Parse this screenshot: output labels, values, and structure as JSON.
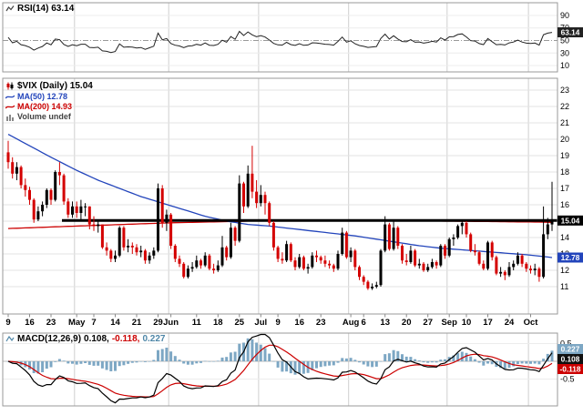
{
  "rsi_panel": {
    "label": "RSI(14) 63.14",
    "badge": "63.14"
  },
  "price_panel": {
    "symbol_label": "$VIX (Daily) 15.04",
    "ma50_label": "MA(50) 12.78",
    "ma200_label": "MA(200) 14.93",
    "volume_label": "Volume undef",
    "price_badge": "15.04",
    "ma50_badge": "12.78"
  },
  "macd_panel": {
    "name": "MACD(12,26,9)",
    "value_macd": "0.108,",
    "value_signal": "-0.118,",
    "value_hist": "0.227",
    "badge_macd": "0.108",
    "badge_signal": "-0.118",
    "badge_hist": "0.227"
  },
  "colors": {
    "candle_up": "#000000",
    "candle_down": "#d40000",
    "ma50": "#2244bb",
    "ma200": "#cc0000",
    "trendline": "#000000",
    "rsi_line": "#222222",
    "macd_line": "#000000",
    "macd_signal": "#cc0000",
    "macd_hist": "#7da7c4",
    "macd_hist_text": "#4f87a8",
    "badge_price_bg": "#000000",
    "badge_ma50_bg": "#2244bb",
    "badge_rsi_bg": "#222222",
    "badge_macd_bg": "#111111",
    "grid_h": "#e3e3e3",
    "grid_v": "#cfcfcf",
    "panel_border": "#999999"
  },
  "chart_data": [
    {
      "type": "line",
      "title": "RSI(14)",
      "last_value": 63.14,
      "ylim": [
        0,
        100
      ],
      "yticks": [
        90,
        70,
        50,
        30,
        10
      ],
      "midline": 50,
      "overbought": 70,
      "oversold": 30,
      "period": 14
    },
    {
      "type": "candlestick",
      "title": "$VIX (Daily)",
      "last_close": 15.04,
      "ylim": [
        9.3,
        23.7
      ],
      "yticks": [
        23,
        22,
        21,
        20,
        19,
        18,
        17,
        16,
        15,
        14,
        13,
        12,
        11
      ],
      "trendline_level": 15.04,
      "xticks": [
        [
          "9",
          0
        ],
        [
          "16",
          5
        ],
        [
          "23",
          10
        ],
        [
          "May",
          16
        ],
        [
          "7",
          20
        ],
        [
          "14",
          25
        ],
        [
          "21",
          30
        ],
        [
          "29",
          35
        ],
        [
          "Jun",
          38
        ],
        [
          "11",
          44
        ],
        [
          "18",
          49
        ],
        [
          "25",
          54
        ],
        [
          "Jul",
          59
        ],
        [
          "9",
          63
        ],
        [
          "16",
          68
        ],
        [
          "23",
          73
        ],
        [
          "Aug",
          80
        ],
        [
          "6",
          83
        ],
        [
          "13",
          88
        ],
        [
          "20",
          93
        ],
        [
          "27",
          98
        ],
        [
          "Sep",
          103
        ],
        [
          "10",
          107
        ],
        [
          "17",
          112
        ],
        [
          "24",
          117
        ],
        [
          "Oct",
          122
        ]
      ],
      "ohlc": [
        [
          19.2,
          19.9,
          18.2,
          18.6
        ],
        [
          18.6,
          18.9,
          17.6,
          17.9
        ],
        [
          17.9,
          18.6,
          17.5,
          18.3
        ],
        [
          18.3,
          18.4,
          17.0,
          17.2
        ],
        [
          17.2,
          17.6,
          16.5,
          16.9
        ],
        [
          16.9,
          17.1,
          16.0,
          16.3
        ],
        [
          16.3,
          16.4,
          14.9,
          15.1
        ],
        [
          15.1,
          15.9,
          15.0,
          15.6
        ],
        [
          15.6,
          16.2,
          15.3,
          16.0
        ],
        [
          16.0,
          17.0,
          15.8,
          16.9
        ],
        [
          16.9,
          17.0,
          16.0,
          16.3
        ],
        [
          16.3,
          18.1,
          16.2,
          18.0
        ],
        [
          18.0,
          18.6,
          17.2,
          17.8
        ],
        [
          17.8,
          17.9,
          16.0,
          16.2
        ],
        [
          16.2,
          16.4,
          15.2,
          15.4
        ],
        [
          15.4,
          16.2,
          15.2,
          15.9
        ],
        [
          15.9,
          16.2,
          15.2,
          15.5
        ],
        [
          15.5,
          16.3,
          15.1,
          15.9
        ],
        [
          15.9,
          16.1,
          15.3,
          15.9
        ],
        [
          15.9,
          15.9,
          14.5,
          14.8
        ],
        [
          14.8,
          15.3,
          14.4,
          14.7
        ],
        [
          14.7,
          15.0,
          14.3,
          14.8
        ],
        [
          14.8,
          14.8,
          13.3,
          13.4
        ],
        [
          13.4,
          13.7,
          12.9,
          13.2
        ],
        [
          13.2,
          13.3,
          12.5,
          12.7
        ],
        [
          12.7,
          13.2,
          12.5,
          12.9
        ],
        [
          12.9,
          14.7,
          12.8,
          14.6
        ],
        [
          14.6,
          14.7,
          13.2,
          13.4
        ],
        [
          13.4,
          13.9,
          13.1,
          13.5
        ],
        [
          13.5,
          13.7,
          13.0,
          13.4
        ],
        [
          13.4,
          13.6,
          12.9,
          13.1
        ],
        [
          13.1,
          13.5,
          12.8,
          13.2
        ],
        [
          13.2,
          13.3,
          12.4,
          12.6
        ],
        [
          12.6,
          13.1,
          12.4,
          12.9
        ],
        [
          12.9,
          13.4,
          12.7,
          13.2
        ],
        [
          13.2,
          17.3,
          13.1,
          17.0
        ],
        [
          17.0,
          17.2,
          14.6,
          14.9
        ],
        [
          14.9,
          15.7,
          14.4,
          15.4
        ],
        [
          15.4,
          15.5,
          13.3,
          13.5
        ],
        [
          13.5,
          13.6,
          12.5,
          12.7
        ],
        [
          12.7,
          12.9,
          12.2,
          12.4
        ],
        [
          12.4,
          12.5,
          11.5,
          11.6
        ],
        [
          11.6,
          12.3,
          11.5,
          12.1
        ],
        [
          12.1,
          12.5,
          11.9,
          12.2
        ],
        [
          12.2,
          12.9,
          12.1,
          12.6
        ],
        [
          12.6,
          12.7,
          12.1,
          12.3
        ],
        [
          12.3,
          13.1,
          12.2,
          12.9
        ],
        [
          12.9,
          13.0,
          12.0,
          12.1
        ],
        [
          12.1,
          12.4,
          11.8,
          12.0
        ],
        [
          12.0,
          12.6,
          11.9,
          12.3
        ],
        [
          12.3,
          14.1,
          12.2,
          13.4
        ],
        [
          13.4,
          13.5,
          12.6,
          12.8
        ],
        [
          12.8,
          14.9,
          12.7,
          14.6
        ],
        [
          14.6,
          14.7,
          13.5,
          13.8
        ],
        [
          13.8,
          17.8,
          13.7,
          17.3
        ],
        [
          17.3,
          17.4,
          15.5,
          15.9
        ],
        [
          15.9,
          18.4,
          15.8,
          17.9
        ],
        [
          17.9,
          19.6,
          16.4,
          16.8
        ],
        [
          16.8,
          17.5,
          15.8,
          16.1
        ],
        [
          16.1,
          17.2,
          15.9,
          16.6
        ],
        [
          16.6,
          16.8,
          15.4,
          16.1
        ],
        [
          16.1,
          16.2,
          14.7,
          14.9
        ],
        [
          14.9,
          15.0,
          13.2,
          13.4
        ],
        [
          13.4,
          13.5,
          12.5,
          12.7
        ],
        [
          12.7,
          13.1,
          12.4,
          12.6
        ],
        [
          12.6,
          13.8,
          12.5,
          13.6
        ],
        [
          13.6,
          13.7,
          12.5,
          12.6
        ],
        [
          12.6,
          12.8,
          12.0,
          12.2
        ],
        [
          12.2,
          13.0,
          12.1,
          12.8
        ],
        [
          12.8,
          12.9,
          12.0,
          12.1
        ],
        [
          12.1,
          12.4,
          11.8,
          12.2
        ],
        [
          12.2,
          13.1,
          12.1,
          12.9
        ],
        [
          12.9,
          13.2,
          12.5,
          12.8
        ],
        [
          12.8,
          12.9,
          12.4,
          12.6
        ],
        [
          12.6,
          12.9,
          12.2,
          12.4
        ],
        [
          12.4,
          12.6,
          12.1,
          12.3
        ],
        [
          12.3,
          12.4,
          11.9,
          12.1
        ],
        [
          12.1,
          13.2,
          12.0,
          13.0
        ],
        [
          13.0,
          14.6,
          12.9,
          14.3
        ],
        [
          14.3,
          14.4,
          12.7,
          12.8
        ],
        [
          12.8,
          13.4,
          12.5,
          13.2
        ],
        [
          13.2,
          13.3,
          12.0,
          12.2
        ],
        [
          12.2,
          12.3,
          11.4,
          11.6
        ],
        [
          11.6,
          11.7,
          11.1,
          11.3
        ],
        [
          11.3,
          11.4,
          10.8,
          10.9
        ],
        [
          10.9,
          11.2,
          10.8,
          11.0
        ],
        [
          11.0,
          11.3,
          10.9,
          11.1
        ],
        [
          11.1,
          13.3,
          11.0,
          13.2
        ],
        [
          13.2,
          15.3,
          13.1,
          14.8
        ],
        [
          14.8,
          14.9,
          13.2,
          13.3
        ],
        [
          13.3,
          15.0,
          13.2,
          14.6
        ],
        [
          14.6,
          14.7,
          13.3,
          13.5
        ],
        [
          13.5,
          13.6,
          12.4,
          12.6
        ],
        [
          12.6,
          13.0,
          12.3,
          12.5
        ],
        [
          12.5,
          13.5,
          12.4,
          13.2
        ],
        [
          13.2,
          13.3,
          12.2,
          12.3
        ],
        [
          12.3,
          12.7,
          12.1,
          12.4
        ],
        [
          12.4,
          12.5,
          11.9,
          12.0
        ],
        [
          12.0,
          12.4,
          11.9,
          12.2
        ],
        [
          12.2,
          12.7,
          12.1,
          12.5
        ],
        [
          12.5,
          12.6,
          12.1,
          12.3
        ],
        [
          12.3,
          13.6,
          12.2,
          13.5
        ],
        [
          13.5,
          13.6,
          12.7,
          12.9
        ],
        [
          12.9,
          14.0,
          12.8,
          13.9
        ],
        [
          13.9,
          14.2,
          13.5,
          14.0
        ],
        [
          14.0,
          14.8,
          13.9,
          14.7
        ],
        [
          14.7,
          15.1,
          14.2,
          14.9
        ],
        [
          14.9,
          15.0,
          14.0,
          14.2
        ],
        [
          14.2,
          14.3,
          13.1,
          13.2
        ],
        [
          13.2,
          13.6,
          12.9,
          13.1
        ],
        [
          13.1,
          13.2,
          12.3,
          12.4
        ],
        [
          12.4,
          12.6,
          12.0,
          12.1
        ],
        [
          12.1,
          13.8,
          12.0,
          13.7
        ],
        [
          13.7,
          13.8,
          12.6,
          12.8
        ],
        [
          12.8,
          12.9,
          11.7,
          11.8
        ],
        [
          11.8,
          12.2,
          11.6,
          11.9
        ],
        [
          11.9,
          12.0,
          11.4,
          11.7
        ],
        [
          11.7,
          12.5,
          11.6,
          12.2
        ],
        [
          12.2,
          12.6,
          12.0,
          12.4
        ],
        [
          12.4,
          13.1,
          12.3,
          12.9
        ],
        [
          12.9,
          13.0,
          12.2,
          12.4
        ],
        [
          12.4,
          12.5,
          11.9,
          12.1
        ],
        [
          12.1,
          12.3,
          11.8,
          12.0
        ],
        [
          12.0,
          12.4,
          11.7,
          12.1
        ],
        [
          12.1,
          12.2,
          11.3,
          11.6
        ],
        [
          11.6,
          15.9,
          11.5,
          14.2
        ],
        [
          14.2,
          15.2,
          13.9,
          14.8
        ],
        [
          14.8,
          17.4,
          14.4,
          15.04
        ]
      ],
      "ma50": {
        "label_value": 12.78,
        "keyframes": [
          [
            0,
            20.3
          ],
          [
            5,
            19.6
          ],
          [
            10,
            18.9
          ],
          [
            16,
            18.1
          ],
          [
            21,
            17.5
          ],
          [
            26,
            17.0
          ],
          [
            31,
            16.5
          ],
          [
            36,
            16.1
          ],
          [
            41,
            15.7
          ],
          [
            46,
            15.3
          ],
          [
            51,
            15.0
          ],
          [
            56,
            14.8
          ],
          [
            61,
            14.7
          ],
          [
            66,
            14.55
          ],
          [
            71,
            14.4
          ],
          [
            76,
            14.25
          ],
          [
            81,
            14.1
          ],
          [
            86,
            13.9
          ],
          [
            91,
            13.7
          ],
          [
            96,
            13.5
          ],
          [
            101,
            13.35
          ],
          [
            106,
            13.25
          ],
          [
            111,
            13.15
          ],
          [
            116,
            13.05
          ],
          [
            121,
            12.95
          ],
          [
            127,
            12.78
          ]
        ]
      },
      "ma200": {
        "label_value": 14.93,
        "keyframes": [
          [
            0,
            14.55
          ],
          [
            16,
            14.7
          ],
          [
            38,
            14.9
          ],
          [
            59,
            15.02
          ],
          [
            80,
            15.05
          ],
          [
            103,
            15.0
          ],
          [
            122,
            14.95
          ],
          [
            127,
            14.93
          ]
        ]
      }
    },
    {
      "type": "macd",
      "title": "MACD(12,26,9)",
      "params": [
        12,
        26,
        9
      ],
      "last": {
        "macd": 0.108,
        "signal": -0.118,
        "hist": 0.227
      },
      "ylim": [
        -1.26,
        0.79
      ],
      "yticks": [
        [
          "0.5",
          0.5
        ],
        [
          "0.0",
          0.0
        ],
        [
          "-0.5",
          -0.5
        ]
      ]
    }
  ]
}
